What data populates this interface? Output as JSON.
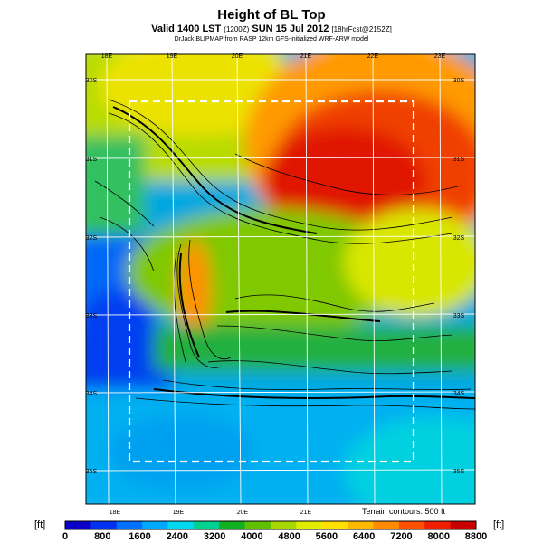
{
  "header": {
    "title": "Height of BL Top",
    "subtitle": "Valid 1400 LST",
    "subtitle_small1": "(1200Z)",
    "subtitle_date": "SUN 15 Jul 2012",
    "subtitle_small2": "[18hrFcst@2152Z]",
    "credit": "DrJack BLIPMAP from RASP 12km GFS-initialized WRF-ARW model"
  },
  "map": {
    "top_lon_labels": [
      "18E",
      "19E",
      "20E",
      "21E",
      "22E",
      "23E"
    ],
    "bottom_lon_labels": [
      "18E",
      "19E",
      "20E",
      "21E"
    ],
    "right_lat_labels": [
      "30S",
      "31S",
      "32S",
      "33S",
      "34S",
      "35S"
    ],
    "left_lat_labels": [
      "30S",
      "31S",
      "32S",
      "33S",
      "34S",
      "35S"
    ],
    "terrain_note": "Terrain contours: 500 ft"
  },
  "colorbar": {
    "unit_left": "[ft]",
    "unit_right": "[ft]",
    "labels": [
      "0",
      "800",
      "1600",
      "2400",
      "3200",
      "4000",
      "4800",
      "5600",
      "6400",
      "7200",
      "8000",
      "8800"
    ],
    "colors": [
      "#0a00c8",
      "#0030f0",
      "#0070ff",
      "#00a8ff",
      "#00d8f0",
      "#00d090",
      "#10b020",
      "#60c000",
      "#a8d800",
      "#e0ec00",
      "#ffe000",
      "#ffb800",
      "#ff8c00",
      "#ff5000",
      "#f01e00",
      "#c80000"
    ]
  }
}
